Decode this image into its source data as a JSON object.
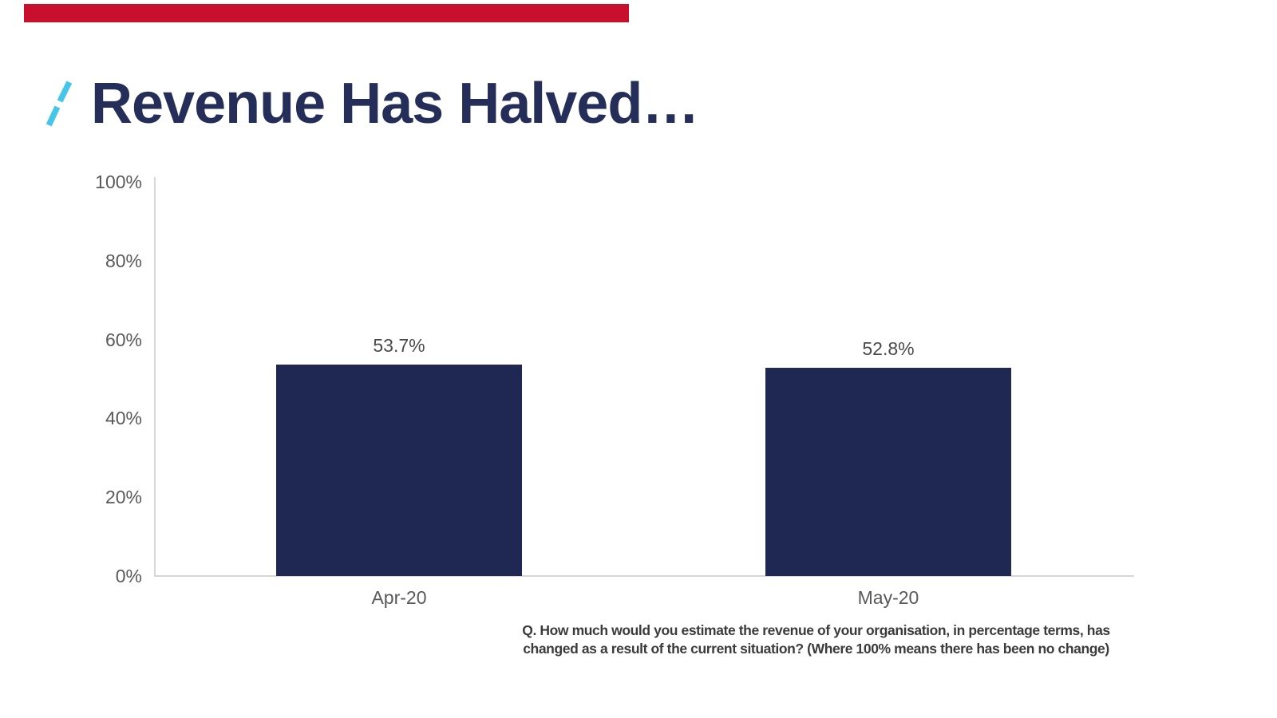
{
  "accent": {
    "color": "#c8102e"
  },
  "title": {
    "text": "Revenue Has Halved…",
    "color": "#242e59",
    "slash_color": "#45c6e9"
  },
  "chart_data": {
    "type": "bar",
    "categories": [
      "Apr-20",
      "May-20"
    ],
    "values": [
      53.7,
      52.8
    ],
    "data_labels": [
      "53.7%",
      "52.8%"
    ],
    "y_ticks": [
      "0%",
      "20%",
      "40%",
      "60%",
      "80%",
      "100%"
    ],
    "ylim": [
      0,
      100
    ],
    "bar_color": "#1f2852",
    "grid": "off",
    "legend": "none",
    "title": "",
    "xlabel": "",
    "ylabel": ""
  },
  "footnote": {
    "line1": "Q. How much would you estimate the revenue of your organisation, in percentage terms, has",
    "line2": "changed as a result of the current situation? (Where 100% means there has been no change)"
  }
}
